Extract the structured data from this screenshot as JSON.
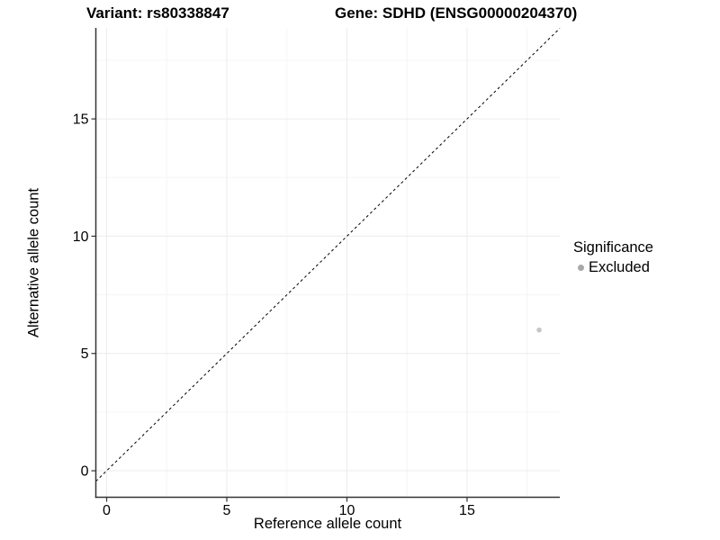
{
  "chart_data": {
    "type": "scatter",
    "titles": {
      "left": "Variant: rs80338847",
      "right": "Gene: SDHD (ENSG00000204370)"
    },
    "xlabel": "Reference allele count",
    "ylabel": "Alternative allele count",
    "x_ticks": [
      0,
      5,
      10,
      15
    ],
    "y_ticks": [
      0,
      5,
      10,
      15
    ],
    "x_minor_ticks": [
      2.5,
      7.5,
      12.5,
      17.5
    ],
    "y_minor_ticks": [
      2.5,
      7.5,
      12.5,
      17.5
    ],
    "xlim": [
      -0.45,
      18.86
    ],
    "ylim": [
      -1.13,
      18.88
    ],
    "grid": "major and minor gridlines, white panel",
    "series": [
      {
        "name": "Excluded",
        "color": "#c6c6c6",
        "point_radius": 2.8,
        "points": [
          {
            "x": 18,
            "y": 6
          }
        ]
      }
    ],
    "reference_line": {
      "kind": "identity y = x",
      "style": "dashed",
      "color": "#000000"
    },
    "legend": {
      "title": "Significance",
      "position": "right",
      "items": [
        {
          "label": "Excluded",
          "swatch_color": "#a8a8a8",
          "marker": "point"
        }
      ]
    },
    "colors": {
      "grid_major": "#ececec",
      "grid_minor": "#f5f5f5",
      "axis_line": "#333333",
      "text": "#000000",
      "background": "#ffffff"
    }
  }
}
